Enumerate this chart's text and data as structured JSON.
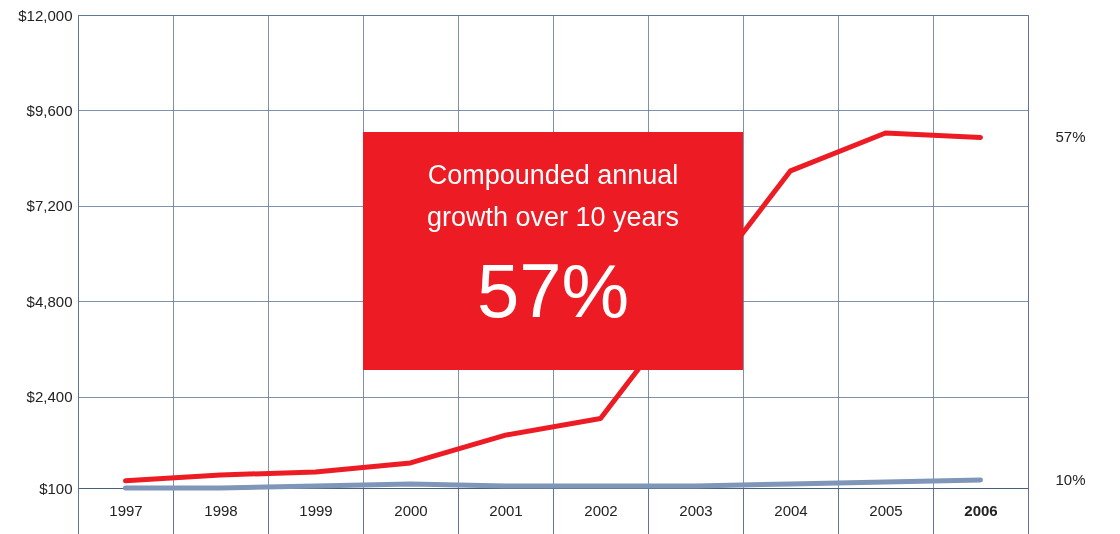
{
  "chart_data": {
    "type": "line",
    "categories": [
      "1997",
      "1998",
      "1999",
      "2000",
      "2001",
      "2002",
      "2003",
      "2004",
      "2005",
      "2006"
    ],
    "series": [
      {
        "color": "#ed1c24",
        "values": [
          280,
          430,
          500,
          730,
          1430,
          1850,
          null,
          8080,
          9030,
          8920
        ]
      },
      {
        "color": "#7f96b8",
        "values": [
          100,
          100,
          150,
          200,
          150,
          150,
          150,
          200,
          250,
          300
        ]
      }
    ],
    "ylim": [
      100,
      12000
    ],
    "yticks": [
      {
        "value": 100,
        "label": "$100"
      },
      {
        "value": 2400,
        "label": "$2,400"
      },
      {
        "value": 4800,
        "label": "$4,800"
      },
      {
        "value": 7200,
        "label": "$7,200"
      },
      {
        "value": 9600,
        "label": "$9,600"
      },
      {
        "value": 12000,
        "label": "$12,000"
      }
    ],
    "grid": true,
    "marker": "none",
    "line_style": "solid",
    "annotations": [
      "Compounded annual growth over 10 years",
      "57%",
      "57%",
      "10%"
    ]
  }
}
